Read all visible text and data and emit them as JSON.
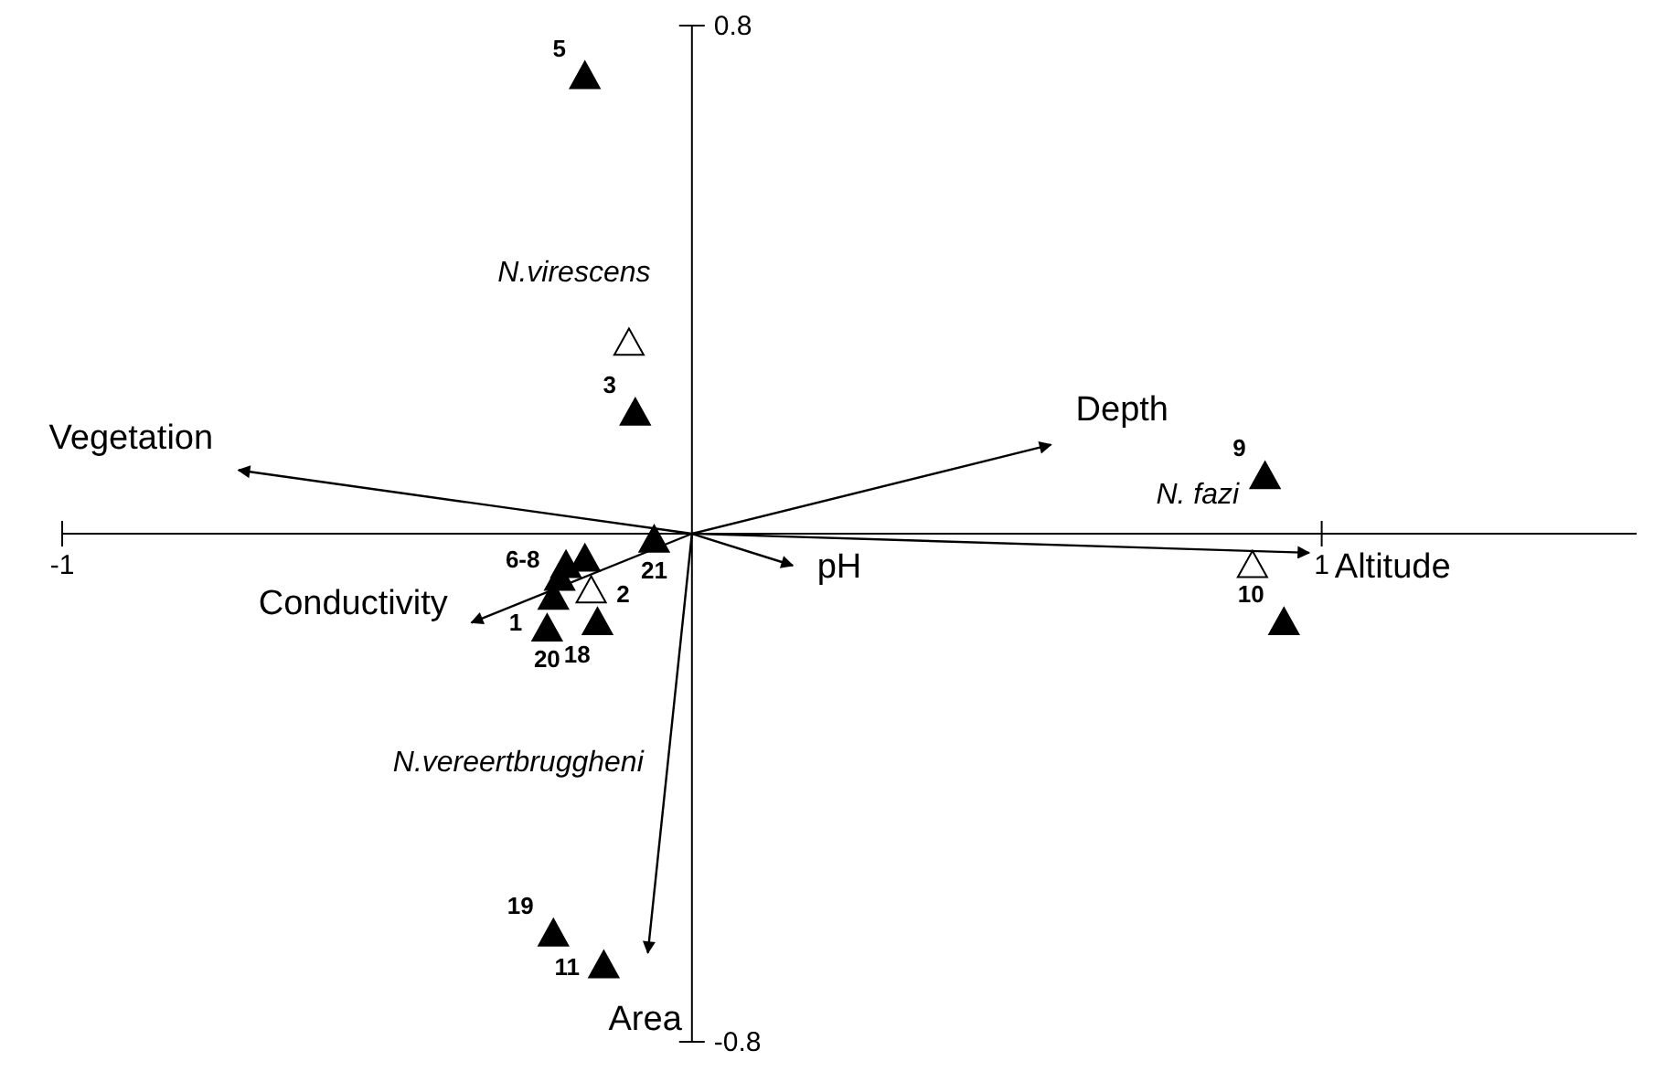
{
  "chart_data": {
    "type": "scatter",
    "xlim": [
      -1,
      1.5
    ],
    "xticks": [
      -1,
      1
    ],
    "ylim": [
      -0.8,
      0.8
    ],
    "yticks": [
      0.8,
      -0.8
    ],
    "grid": false,
    "series": [
      {
        "color": "#000000",
        "marker": "triangle",
        "x": [
          -0.17,
          -0.09,
          0.91,
          0.94,
          -0.06,
          -0.17,
          -0.2,
          -0.21,
          -0.22,
          -0.15,
          -0.23,
          -0.22,
          -0.14
        ],
        "values": [
          0.72,
          0.19,
          0.09,
          -0.14,
          -0.01,
          -0.04,
          -0.05,
          -0.07,
          -0.1,
          -0.14,
          -0.15,
          -0.63,
          -0.68
        ]
      },
      {
        "color": "#ffffff",
        "marker": "triangle",
        "x": [
          -0.1,
          0.89,
          -0.16
        ],
        "values": [
          0.3,
          -0.05,
          -0.09
        ]
      },
      {
        "type": "line",
        "name": "Vegetation",
        "color": "#000000",
        "x": [
          0,
          -0.72
        ],
        "values": [
          0,
          0.1
        ]
      },
      {
        "type": "line",
        "name": "Depth",
        "color": "#000000",
        "x": [
          0,
          0.57
        ],
        "values": [
          0,
          0.14
        ]
      },
      {
        "type": "line",
        "name": "Altitude",
        "color": "#000000",
        "x": [
          0,
          0.98
        ],
        "values": [
          0,
          -0.03
        ]
      },
      {
        "type": "line",
        "name": "pH",
        "color": "#000000",
        "x": [
          0,
          0.16
        ],
        "values": [
          0,
          -0.05
        ]
      },
      {
        "type": "line",
        "name": "Conductivity",
        "color": "#000000",
        "x": [
          0,
          -0.35
        ],
        "values": [
          0,
          -0.14
        ]
      },
      {
        "type": "line",
        "name": "Area",
        "color": "#000000",
        "x": [
          0,
          -0.07
        ],
        "values": [
          0,
          -0.66
        ]
      }
    ],
    "annotations": [
      {
        "text": "5",
        "x": -0.17,
        "y": 0.72
      },
      {
        "text": "3",
        "x": -0.09,
        "y": 0.19
      },
      {
        "text": "9",
        "x": 0.91,
        "y": 0.09
      },
      {
        "text": "10",
        "x": 0.94,
        "y": -0.14
      },
      {
        "text": "21",
        "x": -0.06,
        "y": -0.01
      },
      {
        "text": "6-8",
        "x": -0.17,
        "y": -0.04
      },
      {
        "text": "1",
        "x": -0.21,
        "y": -0.07
      },
      {
        "text": "18",
        "x": -0.22,
        "y": -0.1
      },
      {
        "text": "2",
        "x": -0.15,
        "y": -0.14
      },
      {
        "text": "20",
        "x": -0.23,
        "y": -0.15
      },
      {
        "text": "19",
        "x": -0.22,
        "y": -0.63
      },
      {
        "text": "11",
        "x": -0.14,
        "y": -0.68
      },
      {
        "text": "N.virescens",
        "x": -0.1,
        "y": 0.3
      },
      {
        "text": "N. fazi",
        "x": 0.89,
        "y": -0.05
      },
      "N.vereertbruggheni"
    ]
  }
}
